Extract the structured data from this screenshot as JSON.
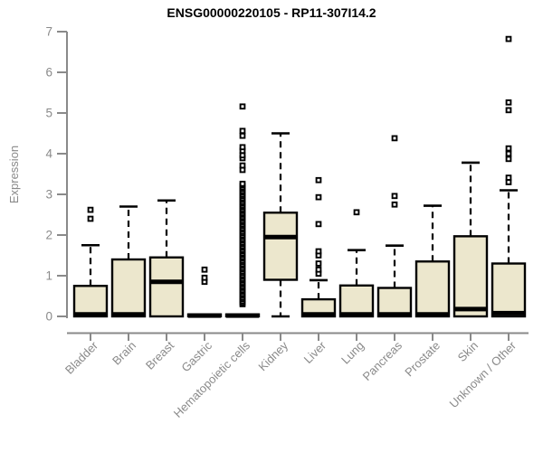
{
  "page": {
    "background": "#ffffff"
  },
  "chart_data": {
    "type": "boxplot",
    "title": "ENSG00000220105 - RP11-307I14.2",
    "xlabel": "",
    "ylabel": "Expression",
    "ylim": [
      0,
      7
    ],
    "yticks": [
      0,
      1,
      2,
      3,
      4,
      5,
      6,
      7
    ],
    "grid": false,
    "legend": false,
    "categories": [
      "Bladder",
      "Brain",
      "Breast",
      "Gastric",
      "Hematopoietic cells",
      "Kidney",
      "Liver",
      "Lung",
      "Pancreas",
      "Prostate",
      "Skin",
      "Unknown / Other"
    ],
    "boxes": [
      {
        "category": "Bladder",
        "low": 0,
        "q1": 0,
        "median": 0.05,
        "q3": 0.75,
        "high": 1.75,
        "outliers": [
          2.4,
          2.62
        ]
      },
      {
        "category": "Brain",
        "low": 0,
        "q1": 0,
        "median": 0.05,
        "q3": 1.4,
        "high": 2.7,
        "outliers": []
      },
      {
        "category": "Breast",
        "low": 0,
        "q1": 0,
        "median": 0.85,
        "q3": 1.45,
        "high": 2.85,
        "outliers": []
      },
      {
        "category": "Gastric",
        "low": 0,
        "q1": 0,
        "median": 0.02,
        "q3": 0.05,
        "high": 0.05,
        "outliers": [
          0.85,
          0.95,
          1.15
        ]
      },
      {
        "category": "Hematopoietic cells",
        "low": 0,
        "q1": 0,
        "median": 0.02,
        "q3": 0.05,
        "high": 0.05,
        "outliers": [
          0.3,
          0.34,
          0.38,
          0.43,
          0.47,
          0.52,
          0.56,
          0.61,
          0.65,
          0.7,
          0.74,
          0.79,
          0.83,
          0.88,
          0.92,
          0.97,
          1.01,
          1.06,
          1.1,
          1.15,
          1.19,
          1.24,
          1.28,
          1.33,
          1.37,
          1.42,
          1.46,
          1.51,
          1.55,
          1.6,
          1.64,
          1.69,
          1.73,
          1.78,
          1.82,
          1.87,
          1.91,
          1.96,
          2.0,
          2.05,
          2.09,
          2.14,
          2.18,
          2.23,
          2.27,
          2.32,
          2.36,
          2.41,
          2.45,
          2.5,
          2.54,
          2.59,
          2.63,
          2.68,
          2.72,
          2.77,
          2.81,
          2.86,
          2.9,
          2.95,
          2.99,
          3.04,
          3.08,
          3.13,
          3.17,
          3.22,
          3.26,
          3.6,
          3.71,
          3.89,
          3.96,
          4.07,
          4.16,
          4.44,
          4.56,
          5.16
        ]
      },
      {
        "category": "Kidney",
        "low": 0,
        "q1": 0.9,
        "median": 1.95,
        "q3": 2.55,
        "high": 4.5,
        "outliers": []
      },
      {
        "category": "Liver",
        "low": 0,
        "q1": 0,
        "median": 0.05,
        "q3": 0.42,
        "high": 0.89,
        "outliers": [
          1.05,
          1.15,
          1.3,
          1.5,
          1.6,
          2.27,
          2.93,
          3.35
        ]
      },
      {
        "category": "Lung",
        "low": 0,
        "q1": 0,
        "median": 0.05,
        "q3": 0.76,
        "high": 1.63,
        "outliers": [
          2.56
        ]
      },
      {
        "category": "Pancreas",
        "low": 0,
        "q1": 0,
        "median": 0.05,
        "q3": 0.7,
        "high": 1.74,
        "outliers": [
          2.75,
          2.96,
          4.38
        ]
      },
      {
        "category": "Prostate",
        "low": 0,
        "q1": 0,
        "median": 0.05,
        "q3": 1.35,
        "high": 2.72,
        "outliers": []
      },
      {
        "category": "Skin",
        "low": 0,
        "q1": 0,
        "median": 0.18,
        "q3": 1.97,
        "high": 3.78,
        "outliers": []
      },
      {
        "category": "Unknown / Other",
        "low": 0,
        "q1": 0,
        "median": 0.08,
        "q3": 1.3,
        "high": 3.1,
        "outliers": [
          3.3,
          3.41,
          3.87,
          4.0,
          4.13,
          5.07,
          5.26,
          6.82
        ]
      }
    ],
    "colors": {
      "box_fill": "#ece7cd",
      "box_stroke": "#000000",
      "median": "#000000",
      "whisker": "#000000",
      "outlier_stroke": "#000000",
      "outlier_fill": "#ffffff",
      "axis": "#8a8a8a",
      "tick_label": "#8a8a8a",
      "title": "#000000"
    }
  }
}
